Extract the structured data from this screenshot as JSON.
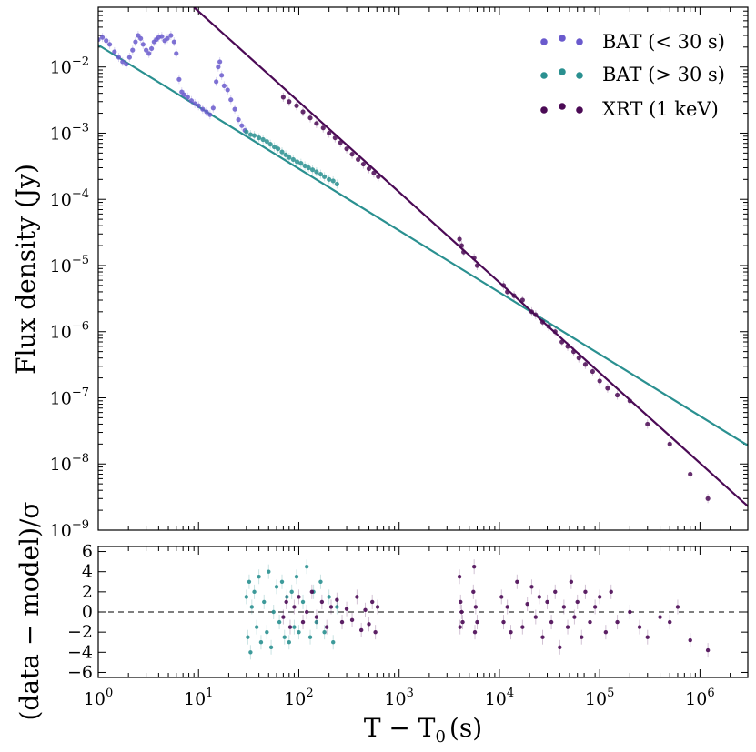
{
  "chart_data": [
    {
      "type": "scatter",
      "panel": "top",
      "title": "",
      "xlabel": "T − T",
      "xlabel_sub": "0",
      "xlabel_unit": "(s)",
      "ylabel": "Flux density (Jy)",
      "xscale": "log",
      "yscale": "log",
      "xlim": [
        1,
        3000000
      ],
      "ylim": [
        1e-09,
        0.08
      ],
      "x_tick_labels": [
        "10",
        "10",
        "10",
        "10",
        "10",
        "10",
        "10"
      ],
      "x_tick_exponents": [
        "0",
        "1",
        "2",
        "3",
        "4",
        "5",
        "6"
      ],
      "y_tick_labels": [
        "10",
        "10",
        "10",
        "10",
        "10",
        "10",
        "10",
        "10"
      ],
      "y_tick_exponents": [
        "−9",
        "−8",
        "−7",
        "−6",
        "−5",
        "−4",
        "−3",
        "−2"
      ],
      "legend_position": "top-right",
      "series": [
        {
          "name": "BAT (< 30 s)",
          "legend_label": "BAT (< 30 s)",
          "color": "#6a5acd",
          "points": [
            [
              1.0,
              0.026
            ],
            [
              1.1,
              0.028
            ],
            [
              1.2,
              0.025
            ],
            [
              1.3,
              0.022
            ],
            [
              1.45,
              0.017
            ],
            [
              1.6,
              0.014
            ],
            [
              1.75,
              0.012
            ],
            [
              1.9,
              0.011
            ],
            [
              2.05,
              0.014
            ],
            [
              2.2,
              0.018
            ],
            [
              2.35,
              0.024
            ],
            [
              2.5,
              0.03
            ],
            [
              2.65,
              0.027
            ],
            [
              2.8,
              0.022
            ],
            [
              3.0,
              0.018
            ],
            [
              3.2,
              0.016
            ],
            [
              3.4,
              0.019
            ],
            [
              3.6,
              0.024
            ],
            [
              3.8,
              0.026
            ],
            [
              4.0,
              0.028
            ],
            [
              4.3,
              0.029
            ],
            [
              4.6,
              0.025
            ],
            [
              4.9,
              0.027
            ],
            [
              5.3,
              0.03
            ],
            [
              5.7,
              0.024
            ],
            [
              6.0,
              0.016
            ],
            [
              6.4,
              0.0065
            ],
            [
              6.8,
              0.0042
            ],
            [
              7.2,
              0.0038
            ],
            [
              7.8,
              0.0035
            ],
            [
              8.5,
              0.0031
            ],
            [
              9.2,
              0.0028
            ],
            [
              10.0,
              0.0026
            ],
            [
              11.0,
              0.0023
            ],
            [
              12.0,
              0.0021
            ],
            [
              13.0,
              0.0019
            ],
            [
              14.0,
              0.0024
            ],
            [
              15.0,
              0.006
            ],
            [
              15.7,
              0.01
            ],
            [
              16.3,
              0.012
            ],
            [
              17.0,
              0.0075
            ],
            [
              18.0,
              0.0052
            ],
            [
              19.5,
              0.0045
            ],
            [
              21.0,
              0.0032
            ],
            [
              23.0,
              0.0023
            ],
            [
              25.0,
              0.0016
            ],
            [
              27.0,
              0.0013
            ],
            [
              29.0,
              0.0011
            ]
          ]
        },
        {
          "name": "BAT (> 30 s)",
          "legend_label": "BAT (> 30 s)",
          "color": "#2a9090",
          "points": [
            [
              30,
              0.00105
            ],
            [
              33,
              0.00095
            ],
            [
              36,
              0.00092
            ],
            [
              40,
              0.00085
            ],
            [
              44,
              0.0008
            ],
            [
              48,
              0.00075
            ],
            [
              52,
              0.00068
            ],
            [
              57,
              0.00062
            ],
            [
              62,
              0.00058
            ],
            [
              68,
              0.00052
            ],
            [
              74,
              0.00047
            ],
            [
              80,
              0.00043
            ],
            [
              88,
              0.0004
            ],
            [
              96,
              0.00037
            ],
            [
              105,
              0.00035
            ],
            [
              115,
              0.00032
            ],
            [
              125,
              0.0003
            ],
            [
              137,
              0.00028
            ],
            [
              150,
              0.00026
            ],
            [
              165,
              0.00024
            ],
            [
              180,
              0.00022
            ],
            [
              200,
              0.0002
            ],
            [
              220,
              0.00019
            ],
            [
              240,
              0.00017
            ]
          ],
          "fit_line": {
            "x": [
              1,
              3000000
            ],
            "y": [
              0.0215,
              1.9e-08
            ]
          }
        },
        {
          "name": "XRT (1 keV)",
          "legend_label": "XRT (1 keV)",
          "color": "#4b0a55",
          "points": [
            [
              70,
              0.0035
            ],
            [
              80,
              0.003
            ],
            [
              95,
              0.0026
            ],
            [
              110,
              0.0021
            ],
            [
              130,
              0.0017
            ],
            [
              150,
              0.0014
            ],
            [
              175,
              0.0012
            ],
            [
              200,
              0.001
            ],
            [
              230,
              0.00085
            ],
            [
              260,
              0.00072
            ],
            [
              300,
              0.00058
            ],
            [
              340,
              0.00048
            ],
            [
              390,
              0.0004
            ],
            [
              440,
              0.00034
            ],
            [
              500,
              0.00029
            ],
            [
              560,
              0.00025
            ],
            [
              620,
              0.00022
            ],
            [
              4000,
              2.5e-05
            ],
            [
              4200,
              2e-05
            ],
            [
              4400,
              1.6e-05
            ],
            [
              5600,
              1.3e-05
            ],
            [
              6000,
              1e-05
            ],
            [
              11000,
              5e-06
            ],
            [
              12000,
              4e-06
            ],
            [
              14000,
              3.5e-06
            ],
            [
              17000,
              3e-06
            ],
            [
              21000,
              2e-06
            ],
            [
              23000,
              1.8e-06
            ],
            [
              27000,
              1.4e-06
            ],
            [
              31000,
              1.2e-06
            ],
            [
              36000,
              1e-06
            ],
            [
              42000,
              7e-07
            ],
            [
              48000,
              6e-07
            ],
            [
              55000,
              5e-07
            ],
            [
              62000,
              4e-07
            ],
            [
              72000,
              3.2e-07
            ],
            [
              85000,
              2.5e-07
            ],
            [
              100000,
              1.8e-07
            ],
            [
              120000,
              1.4e-07
            ],
            [
              150000,
              1.1e-07
            ],
            [
              200000,
              9e-08
            ],
            [
              300000,
              4e-08
            ],
            [
              500000,
              2e-08
            ],
            [
              800000,
              7e-09
            ],
            [
              1200000,
              3e-09
            ]
          ],
          "fit_line": {
            "x": [
              9,
              3000000
            ],
            "y": [
              0.08,
              2.3e-09
            ]
          }
        }
      ]
    },
    {
      "type": "scatter",
      "panel": "bottom",
      "title": "",
      "ylabel": "(data − model)/σ",
      "xscale": "log",
      "xlim": [
        1,
        3000000
      ],
      "ylim": [
        -6.5,
        6.5
      ],
      "y_tick_labels": [
        "6",
        "4",
        "2",
        "0",
        "−2",
        "−4",
        "−6"
      ],
      "zero_line": "dashed",
      "series": [
        {
          "name": "BAT (> 30 s) residuals",
          "color": "#2a9090",
          "points": [
            [
              30,
              1.5
            ],
            [
              31,
              -2.5
            ],
            [
              32,
              3.0
            ],
            [
              33,
              -4.0
            ],
            [
              34,
              0.5
            ],
            [
              36,
              2.0
            ],
            [
              38,
              -1.5
            ],
            [
              40,
              3.5
            ],
            [
              42,
              -3.0
            ],
            [
              45,
              1.0
            ],
            [
              48,
              -2.0
            ],
            [
              50,
              4.0
            ],
            [
              53,
              -3.5
            ],
            [
              56,
              0.0
            ],
            [
              60,
              2.5
            ],
            [
              64,
              -1.0
            ],
            [
              68,
              3.0
            ],
            [
              72,
              -2.5
            ],
            [
              76,
              1.5
            ],
            [
              80,
              -3.0
            ],
            [
              85,
              2.0
            ],
            [
              90,
              -1.5
            ],
            [
              95,
              3.5
            ],
            [
              100,
              -2.0
            ],
            [
              110,
              1.0
            ],
            [
              120,
              4.5
            ],
            [
              130,
              -2.5
            ],
            [
              140,
              2.0
            ],
            [
              150,
              -1.0
            ],
            [
              165,
              3.0
            ],
            [
              180,
              -2.0
            ],
            [
              200,
              1.5
            ],
            [
              220,
              -3.0
            ],
            [
              240,
              0.5
            ]
          ]
        },
        {
          "name": "XRT (1 keV) residuals",
          "color": "#4b0a55",
          "points": [
            [
              70,
              -0.5
            ],
            [
              75,
              1.0
            ],
            [
              82,
              -1.5
            ],
            [
              90,
              0.5
            ],
            [
              100,
              1.5
            ],
            [
              110,
              -1.0
            ],
            [
              120,
              0.0
            ],
            [
              135,
              2.0
            ],
            [
              150,
              -0.5
            ],
            [
              170,
              1.0
            ],
            [
              190,
              -1.5
            ],
            [
              210,
              0.5
            ],
            [
              240,
              1.2
            ],
            [
              270,
              -1.0
            ],
            [
              300,
              0.3
            ],
            [
              340,
              -0.8
            ],
            [
              380,
              1.5
            ],
            [
              420,
              -1.8
            ],
            [
              460,
              0.2
            ],
            [
              500,
              -1.2
            ],
            [
              540,
              1.0
            ],
            [
              580,
              -2.0
            ],
            [
              610,
              0.5
            ],
            [
              4000,
              3.5
            ],
            [
              4050,
              -1.5
            ],
            [
              4100,
              1.0
            ],
            [
              4200,
              0.0
            ],
            [
              4300,
              -1.0
            ],
            [
              5500,
              2.0
            ],
            [
              5600,
              4.5
            ],
            [
              5700,
              -2.0
            ],
            [
              5800,
              0.5
            ],
            [
              6000,
              -1.0
            ],
            [
              10500,
              1.5
            ],
            [
              11000,
              -1.0
            ],
            [
              12000,
              0.5
            ],
            [
              13000,
              -2.0
            ],
            [
              15000,
              3.0
            ],
            [
              17000,
              -1.5
            ],
            [
              19000,
              0.8
            ],
            [
              21000,
              2.5
            ],
            [
              23000,
              -0.5
            ],
            [
              25000,
              1.5
            ],
            [
              27000,
              -2.5
            ],
            [
              30000,
              1.0
            ],
            [
              33000,
              -1.0
            ],
            [
              36000,
              2.0
            ],
            [
              40000,
              -3.5
            ],
            [
              44000,
              0.5
            ],
            [
              48000,
              -1.5
            ],
            [
              52000,
              3.0
            ],
            [
              56000,
              -0.5
            ],
            [
              60000,
              1.0
            ],
            [
              66000,
              -2.5
            ],
            [
              72000,
              2.0
            ],
            [
              80000,
              -1.0
            ],
            [
              90000,
              0.5
            ],
            [
              100000,
              1.5
            ],
            [
              115000,
              -2.0
            ],
            [
              130000,
              2.0
            ],
            [
              150000,
              -1.0
            ],
            [
              200000,
              0.0
            ],
            [
              250000,
              -1.5
            ],
            [
              300000,
              -2.5
            ],
            [
              400000,
              -0.5
            ],
            [
              500000,
              -1.0
            ],
            [
              600000,
              0.5
            ],
            [
              800000,
              -2.8
            ],
            [
              1200000,
              -3.8
            ]
          ]
        }
      ]
    }
  ]
}
